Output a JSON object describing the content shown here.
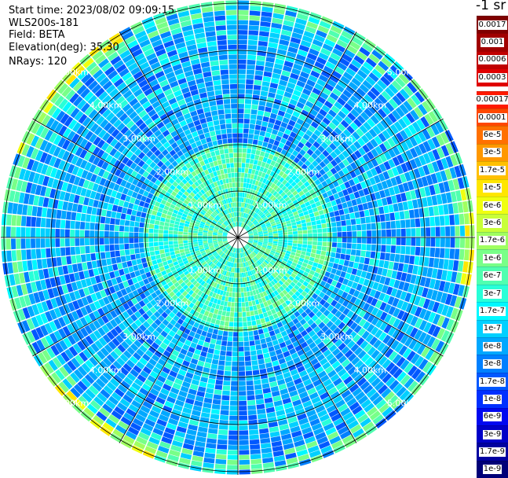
{
  "header": {
    "start_time": "Start time: 2023/08/02 09:09:15",
    "instrument": "WLS200s-181",
    "field": "Field: BETA",
    "elevation": "Elevation(deg): 35.30",
    "nrays": "NRays: 120"
  },
  "colorbar": {
    "unit_label": "-1 sr",
    "entries": [
      {
        "label": "0.0017",
        "color": "#800000"
      },
      {
        "label": "0.001",
        "color": "#a00000"
      },
      {
        "label": "0.0006",
        "color": "#c00000"
      },
      {
        "label": "0.0003",
        "color": "#e00000"
      },
      {
        "label": "0.00017",
        "color": "#ff1a00"
      },
      {
        "label": "0.0001",
        "color": "#ff4800"
      },
      {
        "label": "6e-5",
        "color": "#ff7000"
      },
      {
        "label": "3e-5",
        "color": "#ff9800"
      },
      {
        "label": "1.7e-5",
        "color": "#ffc000"
      },
      {
        "label": "1e-5",
        "color": "#ffe600"
      },
      {
        "label": "6e-6",
        "color": "#f0ff10"
      },
      {
        "label": "3e-6",
        "color": "#c8ff38"
      },
      {
        "label": "1.7e-6",
        "color": "#a0ff60"
      },
      {
        "label": "1e-6",
        "color": "#78ff88"
      },
      {
        "label": "6e-7",
        "color": "#50ffb0"
      },
      {
        "label": "3e-7",
        "color": "#28ffd8"
      },
      {
        "label": "1.7e-7",
        "color": "#00f8ff"
      },
      {
        "label": "1e-7",
        "color": "#00d0ff"
      },
      {
        "label": "6e-8",
        "color": "#00a8ff"
      },
      {
        "label": "3e-8",
        "color": "#0080ff"
      },
      {
        "label": "1.7e-8",
        "color": "#0058ff"
      },
      {
        "label": "1e-8",
        "color": "#0030ff"
      },
      {
        "label": "6e-9",
        "color": "#0008f0"
      },
      {
        "label": "3e-9",
        "color": "#0000c8"
      },
      {
        "label": "1.7e-9",
        "color": "#0000a0"
      },
      {
        "label": "1e-9",
        "color": "#000078"
      }
    ]
  },
  "range_rings": [
    "1.00km",
    "2.00km",
    "3.00km",
    "4.00km",
    "5.00km"
  ],
  "colors": {
    "ring_line": "#000000",
    "label_text": "#ffffff",
    "background": "#ffffff"
  }
}
